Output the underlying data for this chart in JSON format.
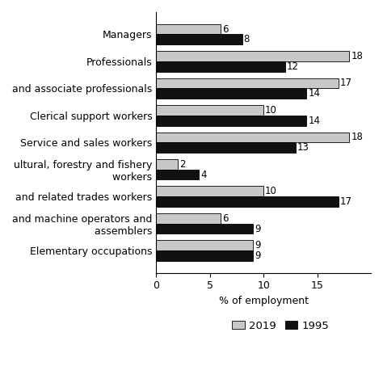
{
  "categories": [
    "Managers",
    "Professionals",
    "and associate professionals",
    "Clerical support workers",
    "Service and sales workers",
    "ultural, forestry and fishery\n    workers",
    "and related trades workers",
    "and machine operators and\n    assemblers",
    "Elementary occupations"
  ],
  "values_2019": [
    6,
    18,
    17,
    10,
    18,
    2,
    10,
    6,
    9
  ],
  "values_1995": [
    8,
    12,
    14,
    14,
    13,
    4,
    17,
    9,
    9
  ],
  "color_2019": "#c8c8c8",
  "color_1995": "#111111",
  "xlabel": "% of employment",
  "xlim": [
    0,
    20
  ],
  "xticks": [
    0,
    5,
    10,
    15
  ],
  "bar_height": 0.38,
  "label_fontsize": 8.5,
  "tick_fontsize": 9
}
